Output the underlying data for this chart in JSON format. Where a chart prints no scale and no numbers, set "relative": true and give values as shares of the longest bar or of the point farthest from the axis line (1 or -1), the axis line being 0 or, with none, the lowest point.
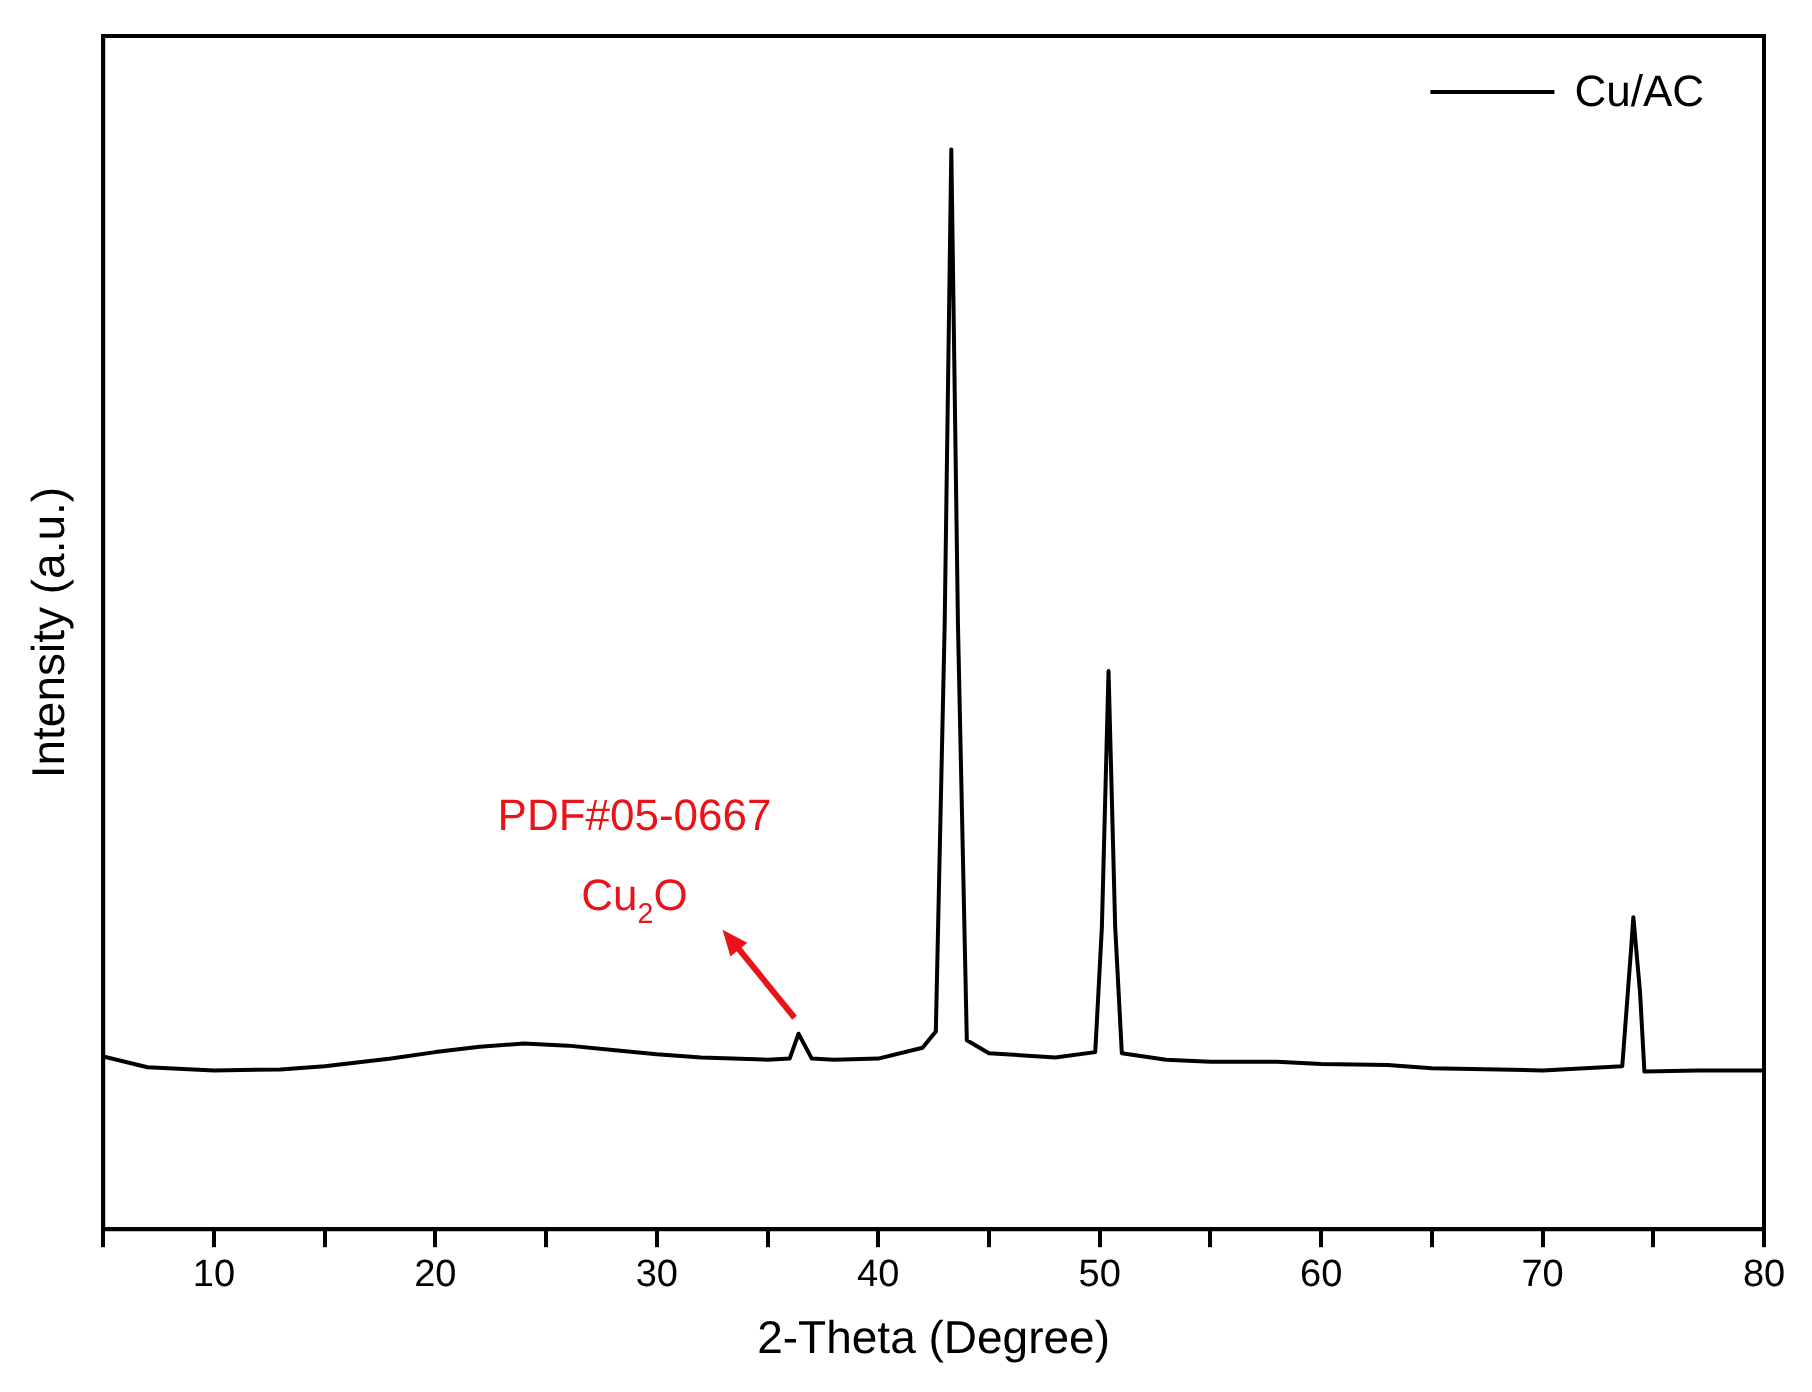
{
  "chart_data": {
    "type": "line",
    "relative": true,
    "xlabel": "2-Theta (Degree)",
    "ylabel": "Intensity (a.u.)",
    "xlim": [
      5,
      80
    ],
    "xticks": [
      {
        "value": 5,
        "label": null
      },
      10,
      {
        "value": 15,
        "label": null
      },
      20,
      {
        "value": 25,
        "label": null
      },
      30,
      {
        "value": 35,
        "label": null
      },
      40,
      {
        "value": 45,
        "label": null
      },
      50,
      {
        "value": 55,
        "label": null
      },
      60,
      {
        "value": 65,
        "label": null
      },
      70,
      {
        "value": 75,
        "label": null
      },
      80
    ],
    "legend": "top right",
    "grid": false,
    "marker": "none",
    "line_style": "solid",
    "annotations": [
      "PDF#05-0667",
      {
        "text": "Cu$_{2}$O",
        "x": 36.4,
        "y": 0.181
      }
    ],
    "series": [
      {
        "name": "Cu/AC",
        "color": "#000000",
        "x": [
          5,
          7,
          10,
          13,
          15,
          18,
          20,
          22,
          24,
          26,
          28,
          30,
          32,
          35,
          36,
          36.4,
          37,
          38,
          40,
          42,
          42.6,
          43.0,
          43.3,
          43.6,
          44.0,
          45,
          48,
          49.8,
          50.1,
          50.4,
          50.7,
          51,
          53,
          55,
          58,
          60,
          63,
          65,
          68,
          70,
          73.6,
          74.0,
          74.1,
          74.4,
          74.6,
          77,
          80
        ],
        "values": [
          0.16,
          0.15,
          0.147,
          0.148,
          0.151,
          0.158,
          0.164,
          0.169,
          0.172,
          0.17,
          0.166,
          0.162,
          0.159,
          0.157,
          0.158,
          0.181,
          0.158,
          0.157,
          0.158,
          0.168,
          0.183,
          0.56,
          1,
          0.56,
          0.175,
          0.163,
          0.159,
          0.164,
          0.28,
          0.517,
          0.28,
          0.163,
          0.157,
          0.155,
          0.155,
          0.153,
          0.152,
          0.149,
          0.148,
          0.147,
          0.151,
          0.26,
          0.289,
          0.22,
          0.146,
          0.147,
          0.147
        ]
      }
    ]
  }
}
